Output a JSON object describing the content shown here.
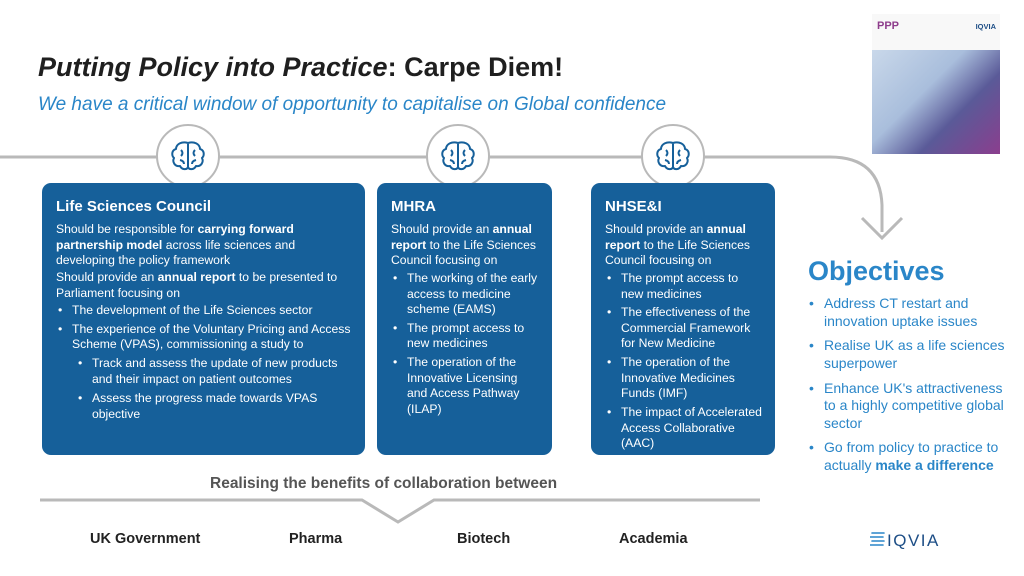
{
  "header": {
    "title_italic": "Putting Policy into Practice",
    "title_rest": ": Carpe Diem!",
    "subtitle": "We have a critical window of opportunity to capitalise on Global confidence"
  },
  "report_cover": {
    "logo_text": "PPP",
    "brand": "IQVIA",
    "icon": "report-cover-image"
  },
  "cards": {
    "lsc": {
      "icon": "brain-icon",
      "title": "Life Sciences Council",
      "p1_pre": "Should be responsible for ",
      "p1_bold": "carrying forward partnership model",
      "p1_post": " across life sciences and developing the policy framework",
      "p2_pre": "Should provide an ",
      "p2_bold": "annual report",
      "p2_post": " to be presented to Parliament focusing on",
      "items": [
        "The development of the Life Sciences sector",
        "The experience of the Voluntary Pricing and Access Scheme (VPAS), commissioning a study to"
      ],
      "subitems": [
        "Track and assess the update of new products and their impact on patient outcomes",
        "Assess the progress made towards VPAS objective"
      ]
    },
    "mhra": {
      "icon": "brain-icon",
      "title": "MHRA",
      "p1_pre": "Should provide an ",
      "p1_bold": "annual report",
      "p1_post": " to the Life Sciences Council focusing on",
      "items": [
        "The working of the early access to medicine scheme (EAMS)",
        "The prompt access to new medicines",
        "The operation of the Innovative Licensing and Access Pathway (ILAP)"
      ]
    },
    "nhsei": {
      "icon": "brain-icon",
      "title": "NHSE&I",
      "p1_pre": "Should provide an ",
      "p1_bold": "annual report",
      "p1_post": " to the Life Sciences Council focusing on",
      "items": [
        "The prompt access to new medicines",
        "The effectiveness of the Commercial Framework for New Medicine",
        "The operation of the Innovative Medicines Funds (IMF)",
        "The impact of Accelerated Access Collaborative (AAC)"
      ]
    }
  },
  "objectives": {
    "title": "Objectives",
    "items": [
      "Address CT restart and innovation uptake issues",
      "Realise UK as a life sciences superpower",
      "Enhance UK's attractiveness to a highly competitive global sector"
    ],
    "last_pre": "Go from policy to practice to actually ",
    "last_bold": "make a difference"
  },
  "collaboration": {
    "title": "Realising the benefits of collaboration between",
    "partners": [
      "UK Government",
      "Pharma",
      "Biotech",
      "Academia"
    ]
  },
  "footer": {
    "logo": "IQVIA"
  },
  "colors": {
    "card_blue": "#16609a",
    "accent_blue": "#2a86c8",
    "line_grey": "#b9b9b9"
  }
}
